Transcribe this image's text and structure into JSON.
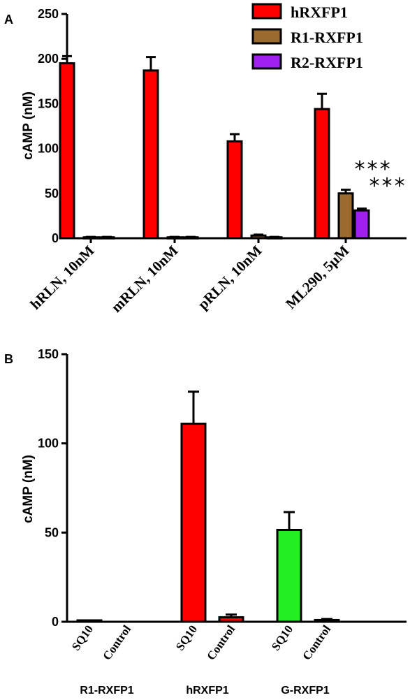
{
  "chart_data": [
    {
      "panel": "A",
      "type": "bar",
      "ylabel": "cAMP (nM)",
      "ylim": [
        0,
        250
      ],
      "yticks": [
        0,
        50,
        100,
        150,
        200,
        250
      ],
      "categories": [
        "hRLN, 10nM",
        "mRLN, 10nM",
        "pRLN, 10nM",
        "ML290, 5μM"
      ],
      "series": [
        {
          "name": "hRXFP1",
          "color": "#ff0000",
          "values": [
            195,
            187,
            108,
            144
          ],
          "errors": [
            8,
            15,
            8,
            17
          ]
        },
        {
          "name": "R1-RXFP1",
          "color": "#9b6a2f",
          "values": [
            1,
            1,
            3,
            50
          ],
          "errors": [
            0.5,
            0.5,
            1,
            4
          ]
        },
        {
          "name": "R2-RXFP1",
          "color": "#a020f0",
          "values": [
            1,
            1,
            1,
            31
          ],
          "errors": [
            0.5,
            0.5,
            0.5,
            2
          ]
        }
      ],
      "legend_position": "top-right",
      "annotations": [
        "***",
        "***"
      ]
    },
    {
      "panel": "B",
      "type": "bar",
      "ylabel": "cAMP (nM)",
      "ylim": [
        0,
        150
      ],
      "yticks": [
        0,
        50,
        100,
        150
      ],
      "groups": [
        {
          "label": "R1-RXFP1",
          "color": "#9b6a2f",
          "bars": [
            {
              "label": "SQ10",
              "value": 0.5,
              "error": 0.3
            },
            {
              "label": "Control",
              "value": 0,
              "error": 0
            }
          ]
        },
        {
          "label": "hRXFP1",
          "color": "#ff0000",
          "bars": [
            {
              "label": "SQ10",
              "value": 111,
              "error": 18
            },
            {
              "label": "Control",
              "value": 2.5,
              "error": 1.5
            }
          ]
        },
        {
          "label": "G-RXFP1",
          "color": "#22ee22",
          "bars": [
            {
              "label": "SQ10",
              "value": 51.5,
              "error": 10
            },
            {
              "label": "Control",
              "value": 1,
              "error": 0.5
            }
          ]
        }
      ]
    }
  ]
}
